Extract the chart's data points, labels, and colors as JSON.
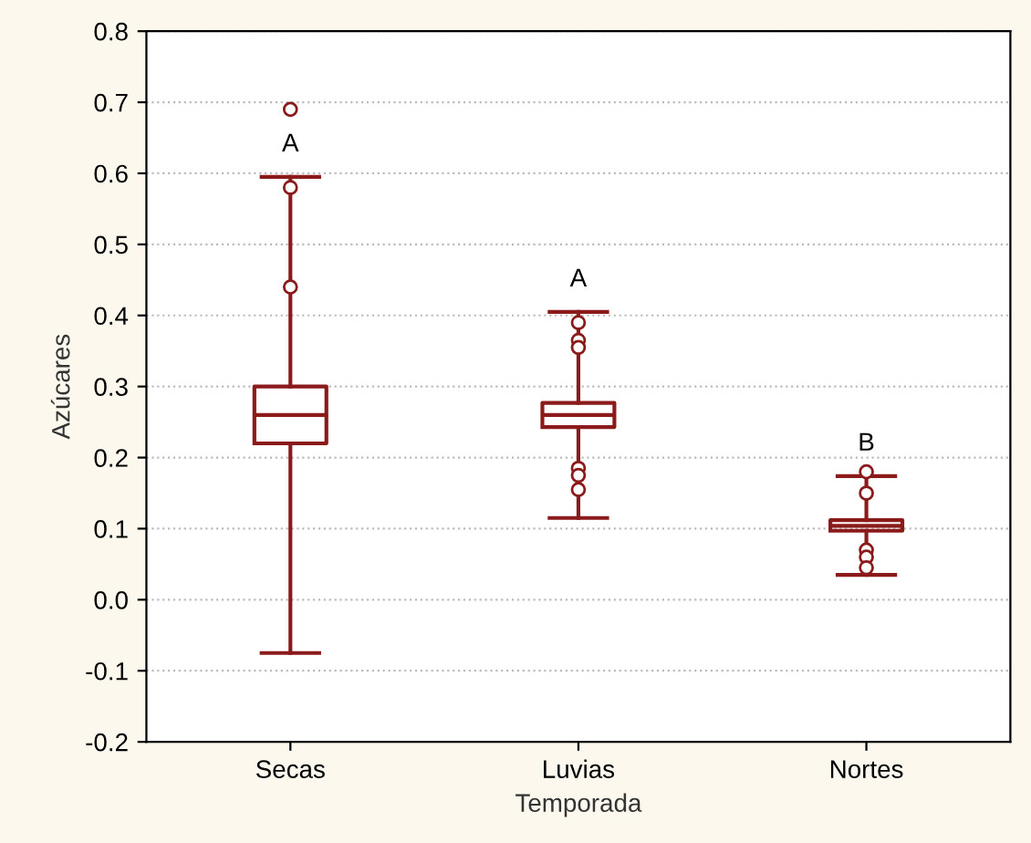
{
  "chart_data": {
    "type": "box",
    "xlabel": "Temporada",
    "ylabel": "Azúcares",
    "categories": [
      "Secas",
      "Luvias",
      "Nortes"
    ],
    "color": "#8b1a1a",
    "boxes": [
      {
        "low": -0.075,
        "q1": 0.22,
        "median": 0.26,
        "q3": 0.3,
        "high": 0.595,
        "outliers": [
          0.69,
          0.58,
          0.44
        ]
      },
      {
        "low": 0.115,
        "q1": 0.243,
        "median": 0.26,
        "q3": 0.277,
        "high": 0.405,
        "outliers": [
          0.39,
          0.365,
          0.355,
          0.185,
          0.175,
          0.155
        ]
      },
      {
        "low": 0.035,
        "q1": 0.097,
        "median": 0.104,
        "q3": 0.112,
        "high": 0.174,
        "outliers": [
          0.18,
          0.15,
          0.07,
          0.06,
          0.045
        ]
      }
    ],
    "ylim": [
      -0.2,
      0.8
    ],
    "yticks": [
      {
        "value": -0.2,
        "label": "-0.2"
      },
      {
        "value": -0.1,
        "label": "-0.1"
      },
      {
        "value": 0.0,
        "label": "0.0"
      },
      0.1,
      0.2,
      0.3,
      0.4,
      0.5,
      0.6,
      0.7,
      0.8
    ],
    "grid": "y",
    "marker": "circle",
    "annotations": [
      "A",
      "A",
      "B"
    ]
  }
}
